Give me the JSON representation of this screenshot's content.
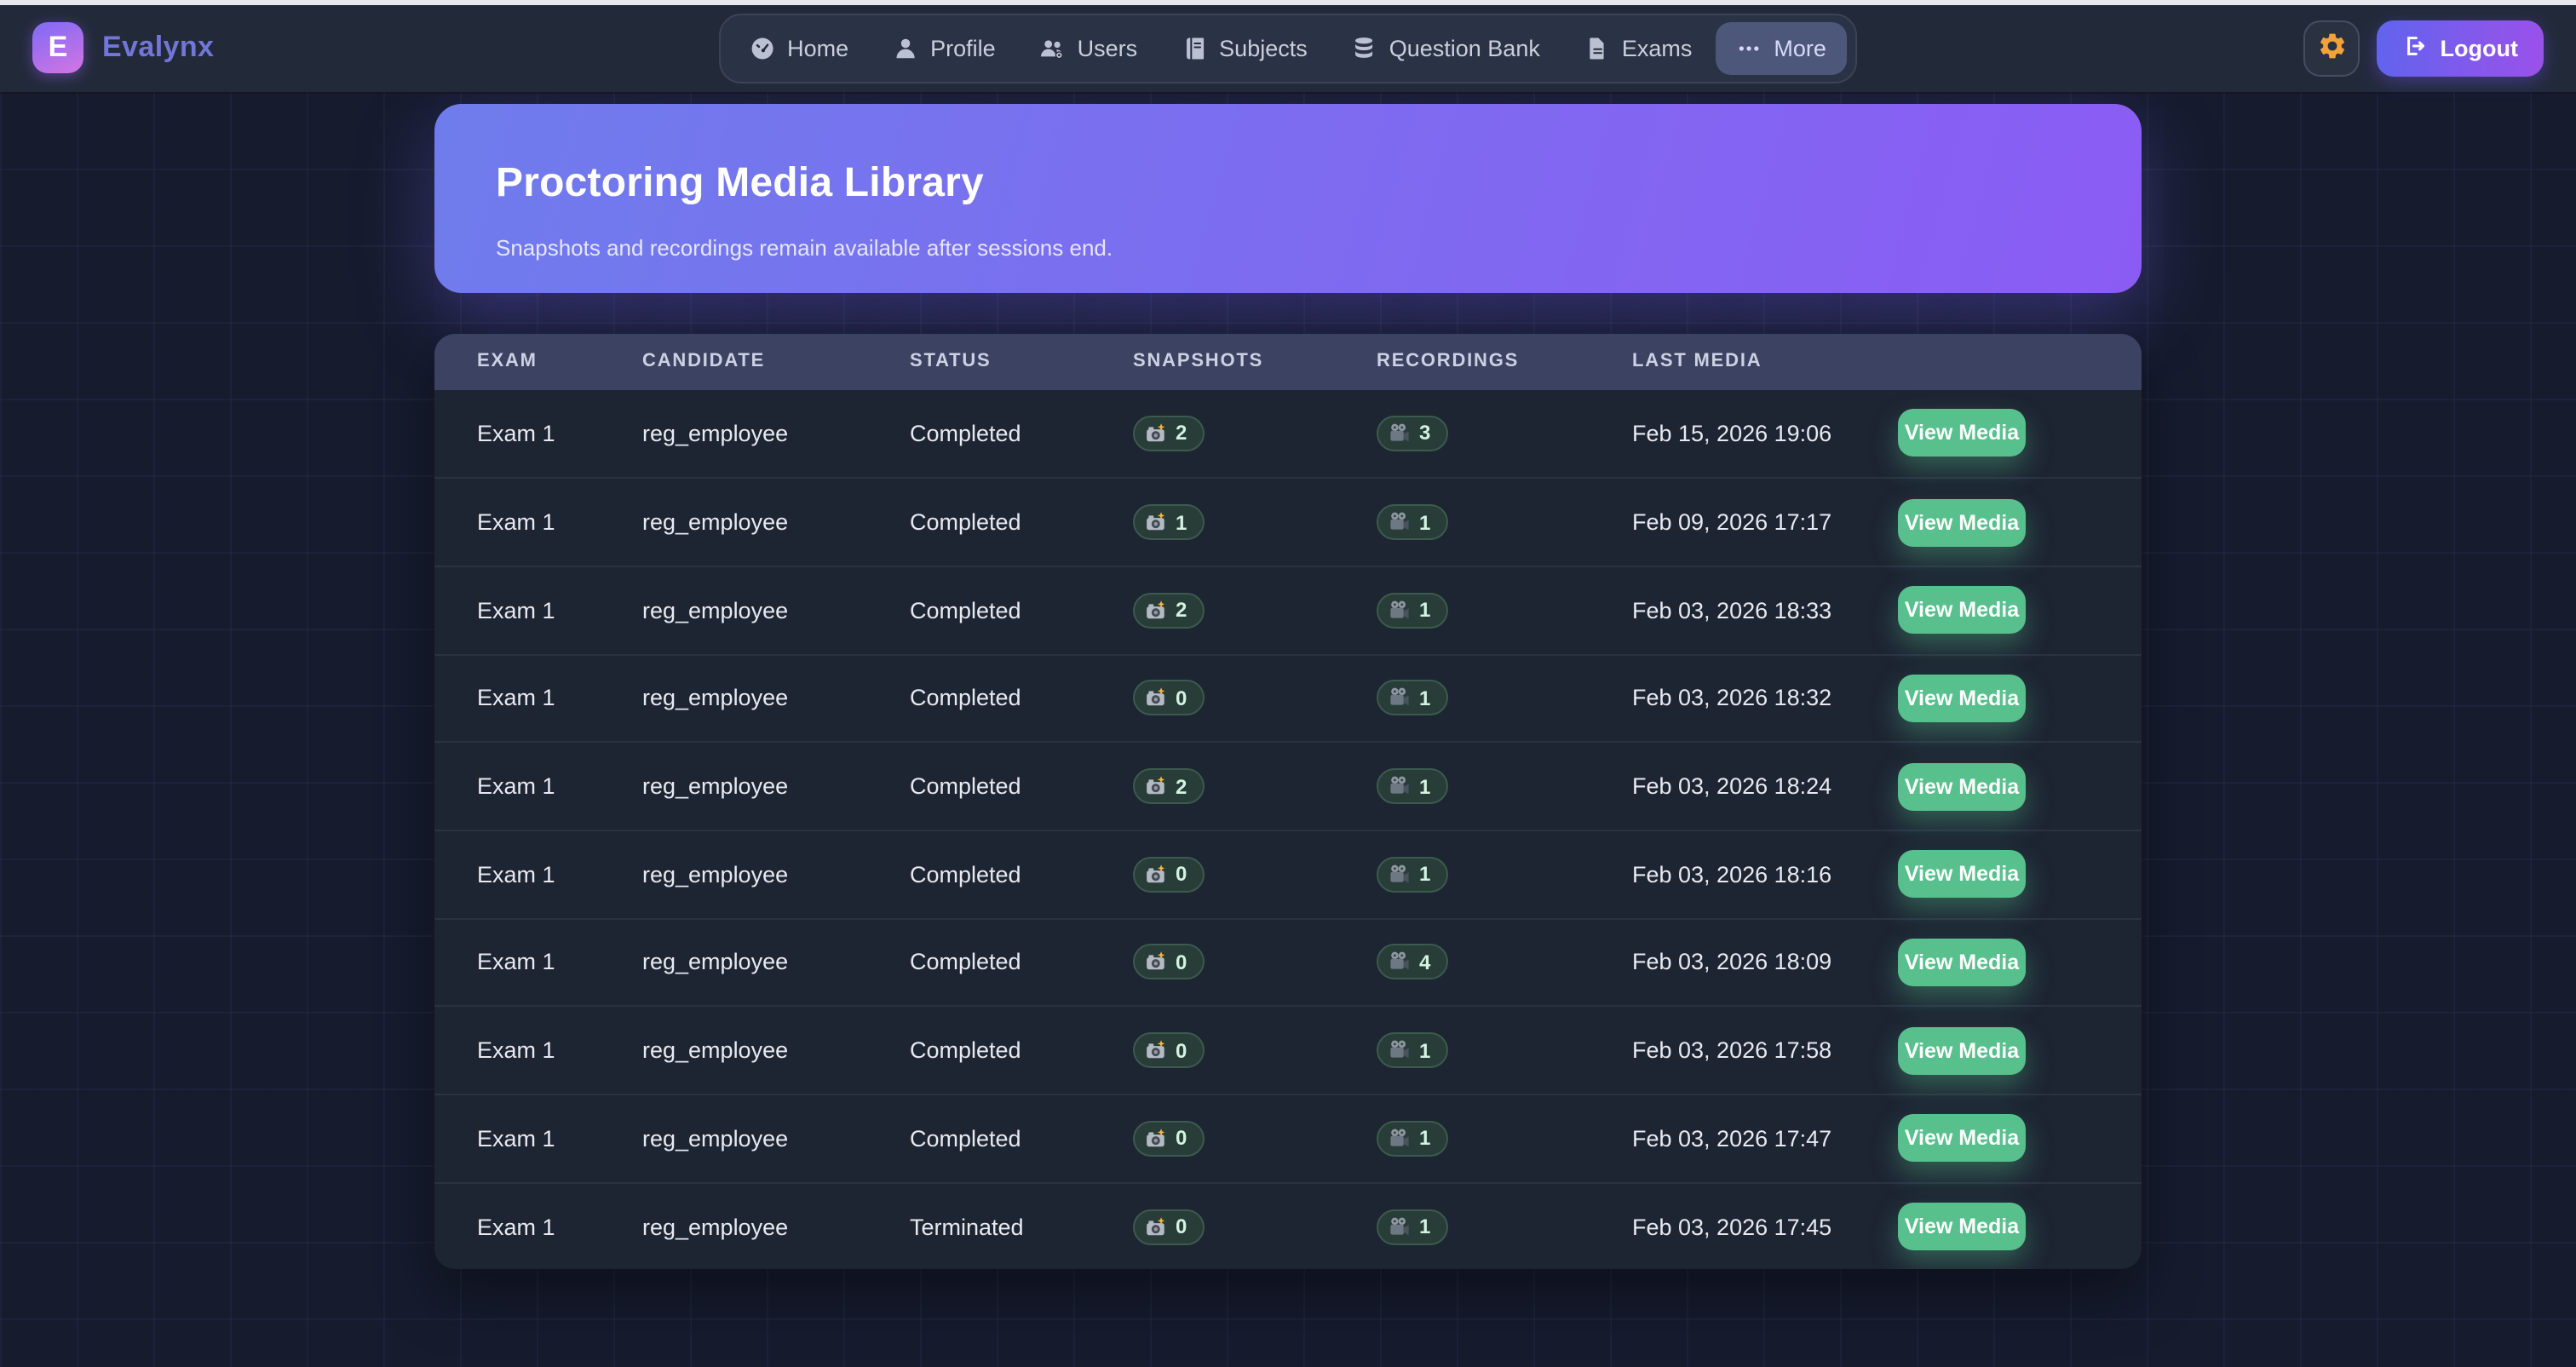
{
  "brand": {
    "logo_letter": "E",
    "name": "Evalynx"
  },
  "nav": {
    "items": [
      {
        "label": "Home",
        "icon": "gauge-icon",
        "active": false
      },
      {
        "label": "Profile",
        "icon": "person-icon",
        "active": false
      },
      {
        "label": "Users",
        "icon": "users-icon",
        "active": false
      },
      {
        "label": "Subjects",
        "icon": "book-icon",
        "active": false
      },
      {
        "label": "Question Bank",
        "icon": "database-icon",
        "active": false
      },
      {
        "label": "Exams",
        "icon": "document-icon",
        "active": false
      },
      {
        "label": "More",
        "icon": "ellipsis-icon",
        "active": true
      }
    ]
  },
  "header_actions": {
    "settings_icon": "gear-icon",
    "logout": {
      "label": "Logout",
      "icon": "logout-icon"
    }
  },
  "hero": {
    "title": "Proctoring Media Library",
    "subtitle": "Snapshots and recordings remain available after sessions end."
  },
  "media_table": {
    "columns": [
      "EXAM",
      "CANDIDATE",
      "STATUS",
      "SNAPSHOTS",
      "RECORDINGS",
      "LAST MEDIA"
    ],
    "action_label": "View Media",
    "snapshot_icon": "camera-flash-icon",
    "recording_icon": "movie-camera-icon",
    "rows": [
      {
        "exam": "Exam 1",
        "candidate": "reg_employee",
        "status": "Completed",
        "snapshots": "2",
        "recordings": "3",
        "last_media": "Feb 15, 2026 19:06"
      },
      {
        "exam": "Exam 1",
        "candidate": "reg_employee",
        "status": "Completed",
        "snapshots": "1",
        "recordings": "1",
        "last_media": "Feb 09, 2026 17:17"
      },
      {
        "exam": "Exam 1",
        "candidate": "reg_employee",
        "status": "Completed",
        "snapshots": "2",
        "recordings": "1",
        "last_media": "Feb 03, 2026 18:33"
      },
      {
        "exam": "Exam 1",
        "candidate": "reg_employee",
        "status": "Completed",
        "snapshots": "0",
        "recordings": "1",
        "last_media": "Feb 03, 2026 18:32"
      },
      {
        "exam": "Exam 1",
        "candidate": "reg_employee",
        "status": "Completed",
        "snapshots": "2",
        "recordings": "1",
        "last_media": "Feb 03, 2026 18:24"
      },
      {
        "exam": "Exam 1",
        "candidate": "reg_employee",
        "status": "Completed",
        "snapshots": "0",
        "recordings": "1",
        "last_media": "Feb 03, 2026 18:16"
      },
      {
        "exam": "Exam 1",
        "candidate": "reg_employee",
        "status": "Completed",
        "snapshots": "0",
        "recordings": "4",
        "last_media": "Feb 03, 2026 18:09"
      },
      {
        "exam": "Exam 1",
        "candidate": "reg_employee",
        "status": "Completed",
        "snapshots": "0",
        "recordings": "1",
        "last_media": "Feb 03, 2026 17:58"
      },
      {
        "exam": "Exam 1",
        "candidate": "reg_employee",
        "status": "Completed",
        "snapshots": "0",
        "recordings": "1",
        "last_media": "Feb 03, 2026 17:47"
      },
      {
        "exam": "Exam 1",
        "candidate": "reg_employee",
        "status": "Terminated",
        "snapshots": "0",
        "recordings": "1",
        "last_media": "Feb 03, 2026 17:45"
      }
    ]
  },
  "colors": {
    "topbar_bg": "#222a3a",
    "page_bg": "#161b2e",
    "table_header_bg": "#3b4262",
    "table_bg": "#1d2432",
    "accent_indigo": "#6f7cec",
    "accent_purple": "#8b5cf4",
    "success_green": "#57c08c",
    "amber": "#f0a336",
    "badge_bg": "#283d38"
  }
}
